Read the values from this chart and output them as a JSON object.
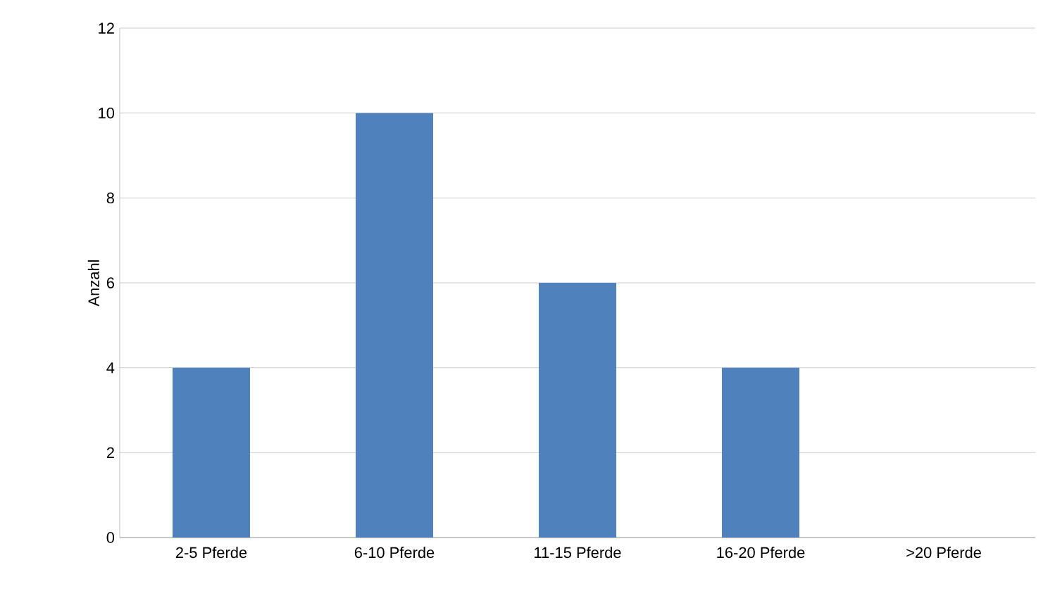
{
  "chart_data": {
    "type": "bar",
    "ylabel": "Anzahl",
    "categories": [
      "2-5 Pferde",
      "6-10 Pferde",
      "11-15 Pferde",
      "16-20 Pferde",
      ">20 Pferde"
    ],
    "values": [
      4,
      10,
      6,
      4,
      0
    ],
    "color": "#4f81bd",
    "ylim": [
      0,
      12
    ],
    "yticks": [
      0,
      2,
      4,
      6,
      8,
      10,
      12
    ],
    "grid": "y"
  }
}
